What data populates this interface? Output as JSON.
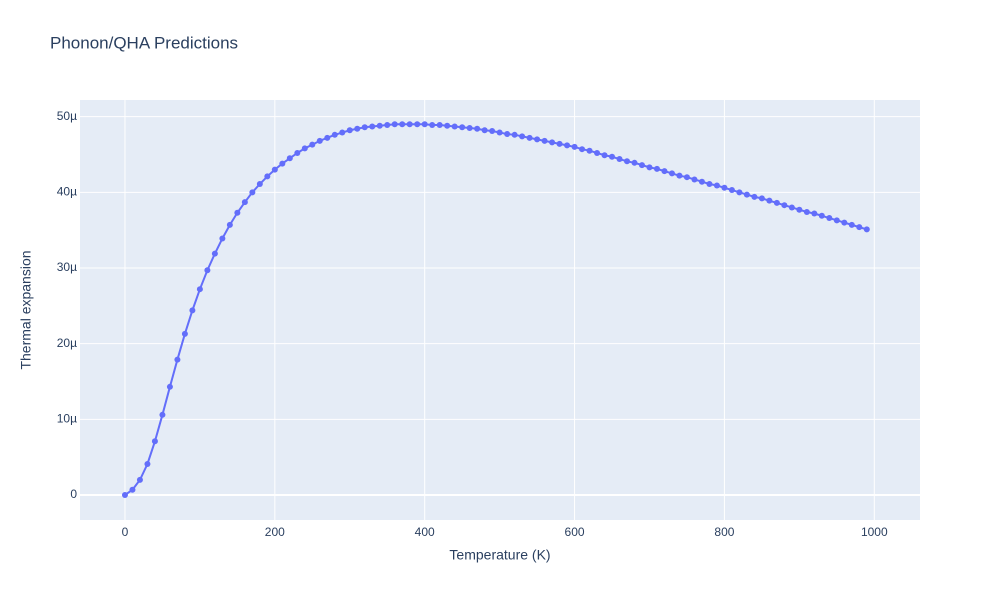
{
  "chart_data": {
    "type": "line",
    "title": "Phonon/QHA Predictions",
    "x_label": "Temperature (K)",
    "y_label": "Thermal expansion",
    "x": [
      0,
      10,
      20,
      30,
      40,
      50,
      60,
      70,
      80,
      90,
      100,
      110,
      120,
      130,
      140,
      150,
      160,
      170,
      180,
      190,
      200,
      210,
      220,
      230,
      240,
      250,
      260,
      270,
      280,
      290,
      300,
      310,
      320,
      330,
      340,
      350,
      360,
      370,
      380,
      390,
      400,
      410,
      420,
      430,
      440,
      450,
      460,
      470,
      480,
      490,
      500,
      510,
      520,
      530,
      540,
      550,
      560,
      570,
      580,
      590,
      600,
      610,
      620,
      630,
      640,
      650,
      660,
      670,
      680,
      690,
      700,
      710,
      720,
      730,
      740,
      750,
      760,
      770,
      780,
      790,
      800,
      810,
      820,
      830,
      840,
      850,
      860,
      870,
      880,
      890,
      900,
      910,
      920,
      930,
      940,
      950,
      960,
      970,
      980,
      990
    ],
    "series": [
      {
        "name": "Thermal expansion",
        "color": "#636efa",
        "values": [
          0,
          7e-07,
          2e-06,
          4.1e-06,
          7.1e-06,
          1.06e-05,
          1.43e-05,
          1.79e-05,
          2.13e-05,
          2.44e-05,
          2.72e-05,
          2.97e-05,
          3.19e-05,
          3.39e-05,
          3.57e-05,
          3.73e-05,
          3.87e-05,
          4e-05,
          4.11e-05,
          4.21e-05,
          4.3e-05,
          4.38e-05,
          4.45e-05,
          4.52e-05,
          4.58e-05,
          4.63e-05,
          4.68e-05,
          4.72e-05,
          4.76e-05,
          4.79e-05,
          4.82e-05,
          4.84e-05,
          4.86e-05,
          4.87e-05,
          4.88e-05,
          4.89e-05,
          4.9e-05,
          4.9e-05,
          4.9e-05,
          4.9e-05,
          4.9e-05,
          4.89e-05,
          4.89e-05,
          4.88e-05,
          4.87e-05,
          4.86e-05,
          4.85e-05,
          4.84e-05,
          4.82e-05,
          4.81e-05,
          4.79e-05,
          4.77e-05,
          4.76e-05,
          4.74e-05,
          4.72e-05,
          4.7e-05,
          4.68e-05,
          4.66e-05,
          4.64e-05,
          4.62e-05,
          4.6e-05,
          4.57e-05,
          4.55e-05,
          4.52e-05,
          4.49e-05,
          4.47e-05,
          4.44e-05,
          4.41e-05,
          4.39e-05,
          4.36e-05,
          4.33e-05,
          4.31e-05,
          4.28e-05,
          4.25e-05,
          4.22e-05,
          4.2e-05,
          4.17e-05,
          4.14e-05,
          4.11e-05,
          4.09e-05,
          4.06e-05,
          4.03e-05,
          4e-05,
          3.97e-05,
          3.94e-05,
          3.92e-05,
          3.89e-05,
          3.86e-05,
          3.83e-05,
          3.8e-05,
          3.77e-05,
          3.74e-05,
          3.72e-05,
          3.69e-05,
          3.66e-05,
          3.63e-05,
          3.6e-05,
          3.57e-05,
          3.54e-05,
          3.51e-05
        ]
      }
    ],
    "xlim": [
      -60,
      1061
    ],
    "ylim": [
      -3.3e-06,
      5.22e-05
    ],
    "xticks": [
      0,
      200,
      400,
      600,
      800,
      1000
    ],
    "yticks": [
      0,
      {
        "value": 1e-05,
        "label": "10µ"
      },
      {
        "value": 2e-05,
        "label": "20µ"
      },
      {
        "value": 3e-05,
        "label": "30µ"
      },
      {
        "value": 4e-05,
        "label": "40µ"
      },
      {
        "value": 5e-05,
        "label": "50µ"
      }
    ],
    "grid": true
  }
}
